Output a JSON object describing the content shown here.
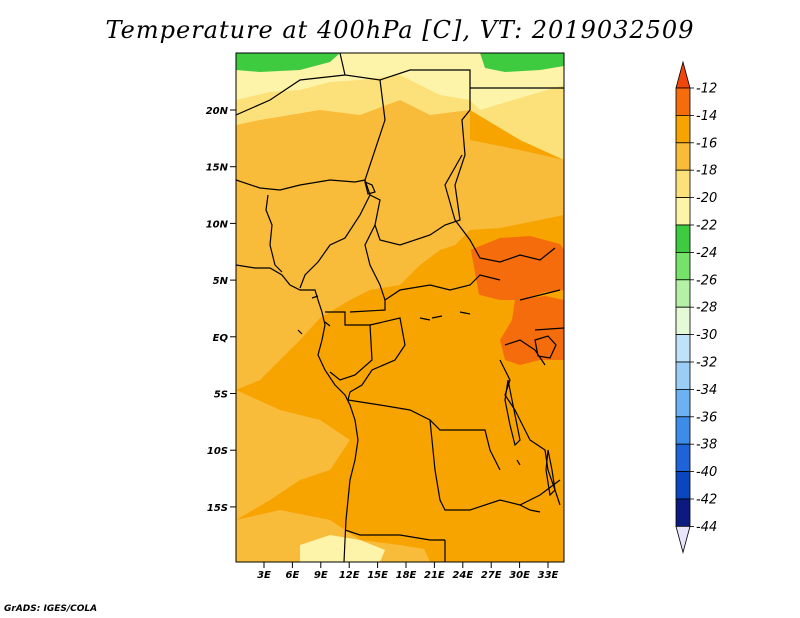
{
  "title": "Temperature at 400hPa [C], VT: 2019032509",
  "credit": "GrADS: IGES/COLA",
  "map": {
    "lat_ticks": [
      "20N",
      "15N",
      "10N",
      "5N",
      "EQ",
      "5S",
      "10S",
      "15S"
    ],
    "lon_ticks": [
      "3E",
      "6E",
      "9E",
      "12E",
      "15E",
      "18E",
      "21E",
      "24E",
      "27E",
      "30E",
      "33E"
    ],
    "field_colors": {
      "minus_14_to_12": "#f46c0c",
      "minus_16_to_14": "#f8a400",
      "minus_18_to_16": "#f9bb3a",
      "minus_20_to_18": "#fce17a",
      "minus_22_to_20": "#fdf4a9",
      "minus_24_to_22": "#3fcb3f"
    }
  },
  "colorbar": {
    "labels": [
      "-12",
      "-14",
      "-16",
      "-18",
      "-20",
      "-22",
      "-24",
      "-26",
      "-28",
      "-30",
      "-32",
      "-34",
      "-36",
      "-38",
      "-40",
      "-42",
      "-44"
    ],
    "colors": [
      "#f0460a",
      "#f46c0c",
      "#f8a400",
      "#f9bb3a",
      "#fce17a",
      "#fdf4a9",
      "#3fcb3f",
      "#76e26a",
      "#b4f0a6",
      "#e4fad7",
      "#bfe2fa",
      "#9ccdf6",
      "#6cb1f1",
      "#3c8ce8",
      "#1e64d8",
      "#0a46c0",
      "#0c1a80",
      "#e8e4fa"
    ]
  }
}
